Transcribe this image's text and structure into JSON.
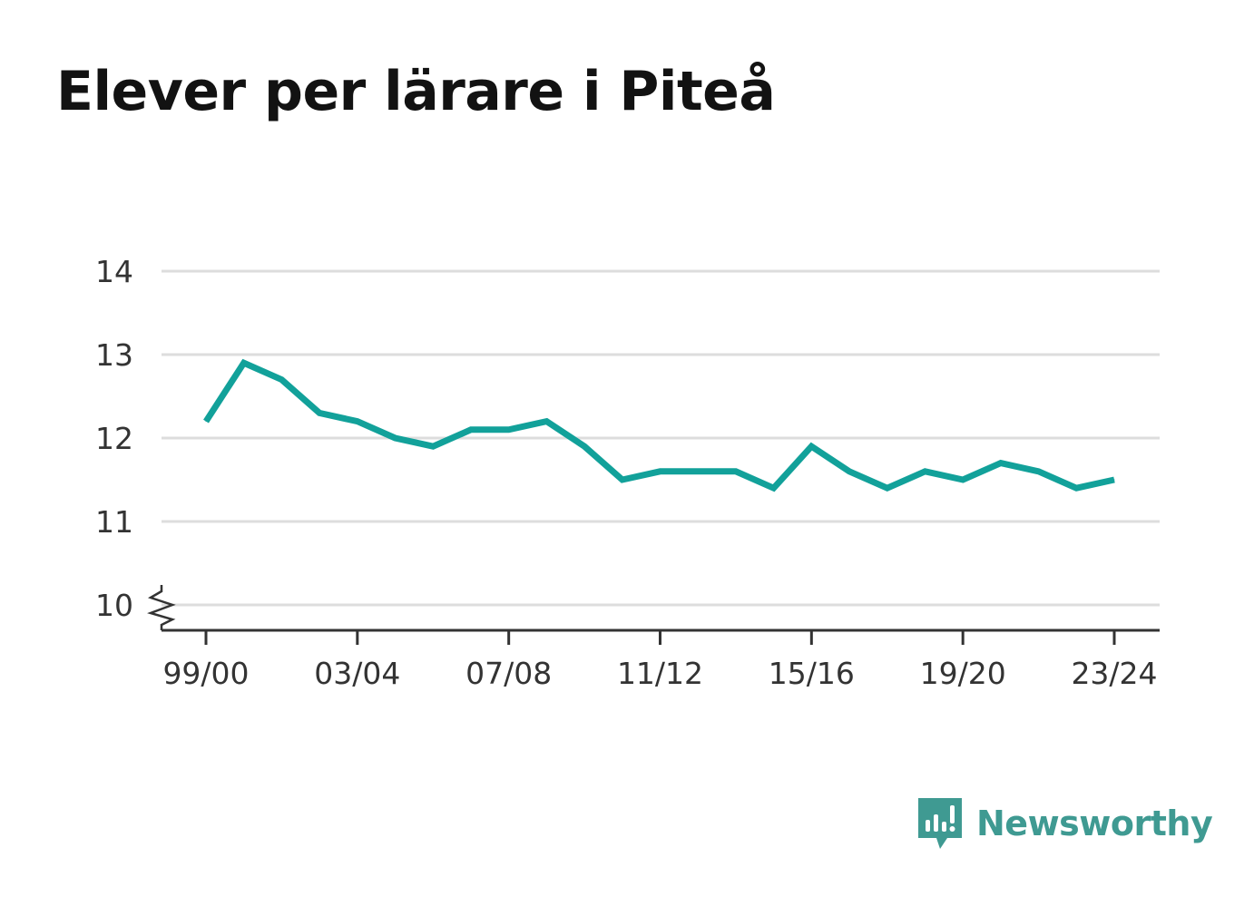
{
  "title": "Elever per lärare i Piteå",
  "brand": {
    "name": "Newsworthy",
    "icon": "newsworthy-logo-icon",
    "color": "#3f9a92"
  },
  "colors": {
    "line": "#12a19a",
    "grid": "#dddddd",
    "axis": "#333333"
  },
  "chart_data": {
    "type": "line",
    "title": "Elever per lärare i Piteå",
    "xlabel": "",
    "ylabel": "",
    "x": [
      "99/00",
      "00/01",
      "01/02",
      "02/03",
      "03/04",
      "04/05",
      "05/06",
      "06/07",
      "07/08",
      "08/09",
      "09/10",
      "10/11",
      "11/12",
      "12/13",
      "13/14",
      "14/15",
      "15/16",
      "16/17",
      "17/18",
      "18/19",
      "19/20",
      "20/21",
      "21/22",
      "22/23",
      "23/24"
    ],
    "xticks": [
      "99/00",
      "03/04",
      "07/08",
      "11/12",
      "15/16",
      "19/20",
      "23/24"
    ],
    "yticks": [
      10,
      11,
      12,
      13,
      14
    ],
    "ylim": [
      10,
      14
    ],
    "y_axis_break": true,
    "grid": true,
    "series": [
      {
        "values": [
          12.2,
          12.9,
          12.7,
          12.3,
          12.2,
          12.0,
          11.9,
          12.1,
          12.1,
          12.2,
          11.9,
          11.5,
          11.6,
          11.6,
          11.6,
          11.4,
          11.9,
          11.6,
          11.4,
          11.6,
          11.5,
          11.7,
          11.6,
          11.4,
          11.5
        ]
      }
    ]
  }
}
